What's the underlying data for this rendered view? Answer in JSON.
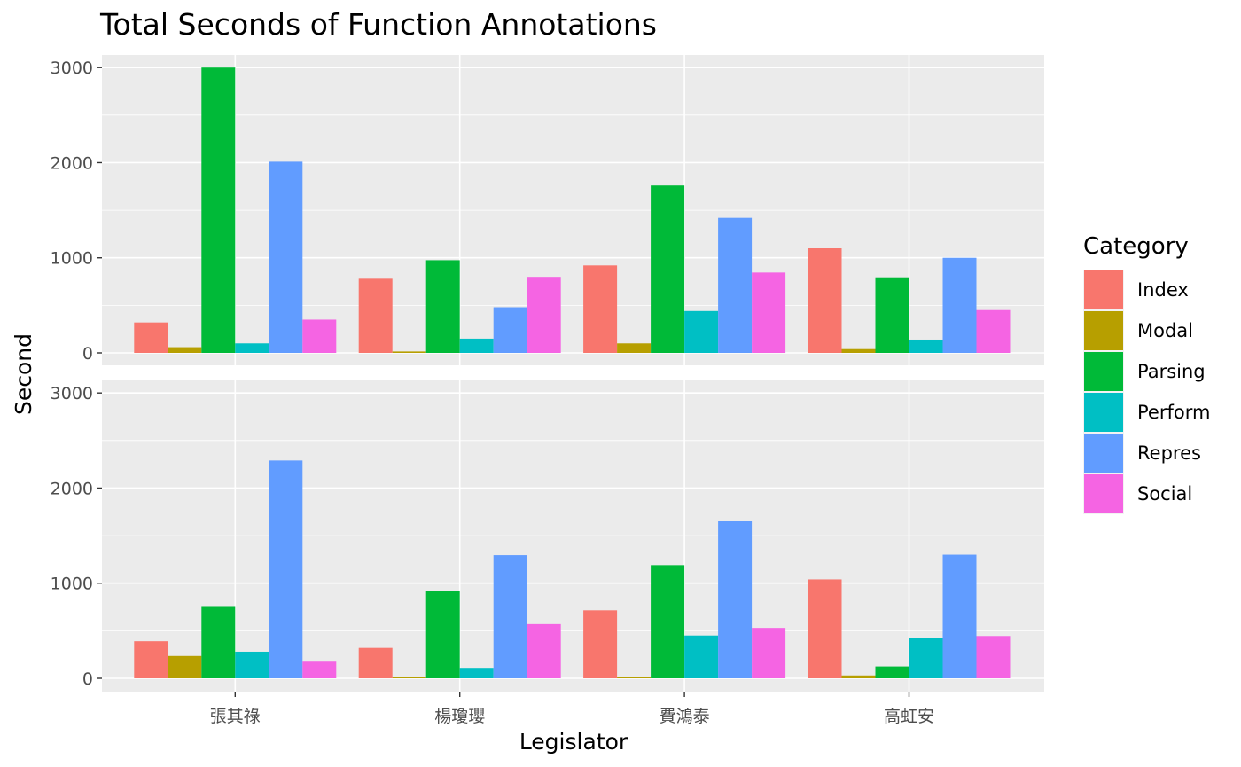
{
  "chart_data": {
    "type": "bar",
    "title": "Total Seconds of Function Annotations",
    "xlabel": "Legislator",
    "ylabel": "Second",
    "categories": [
      "張其祿",
      "楊瓊瓔",
      "費鴻泰",
      "高虹安"
    ],
    "ylim": [
      0,
      3000
    ],
    "yticks": [
      0,
      1000,
      2000,
      3000
    ],
    "legend": {
      "title": "Category",
      "position": "right"
    },
    "grid": true,
    "panels": [
      {
        "series": [
          {
            "name": "Index",
            "color": "#F8766D",
            "values": [
              320,
              780,
              920,
              1100
            ]
          },
          {
            "name": "Modal",
            "color": "#B79F00",
            "values": [
              60,
              15,
              100,
              40
            ]
          },
          {
            "name": "Parsing",
            "color": "#00BA38",
            "values": [
              3000,
              975,
              1760,
              795
            ]
          },
          {
            "name": "Perform",
            "color": "#00BFC4",
            "values": [
              100,
              150,
              440,
              140
            ]
          },
          {
            "name": "Repres",
            "color": "#619CFF",
            "values": [
              2010,
              480,
              1420,
              1000
            ]
          },
          {
            "name": "Social",
            "color": "#F564E3",
            "values": [
              350,
              800,
              845,
              450
            ]
          }
        ]
      },
      {
        "series": [
          {
            "name": "Index",
            "color": "#F8766D",
            "values": [
              390,
              320,
              715,
              1040
            ]
          },
          {
            "name": "Modal",
            "color": "#B79F00",
            "values": [
              235,
              15,
              15,
              30
            ]
          },
          {
            "name": "Parsing",
            "color": "#00BA38",
            "values": [
              760,
              920,
              1190,
              125
            ]
          },
          {
            "name": "Perform",
            "color": "#00BFC4",
            "values": [
              280,
              110,
              450,
              420
            ]
          },
          {
            "name": "Repres",
            "color": "#619CFF",
            "values": [
              2290,
              1295,
              1650,
              1300
            ]
          },
          {
            "name": "Social",
            "color": "#F564E3",
            "values": [
              175,
              570,
              530,
              445
            ]
          }
        ]
      }
    ]
  }
}
